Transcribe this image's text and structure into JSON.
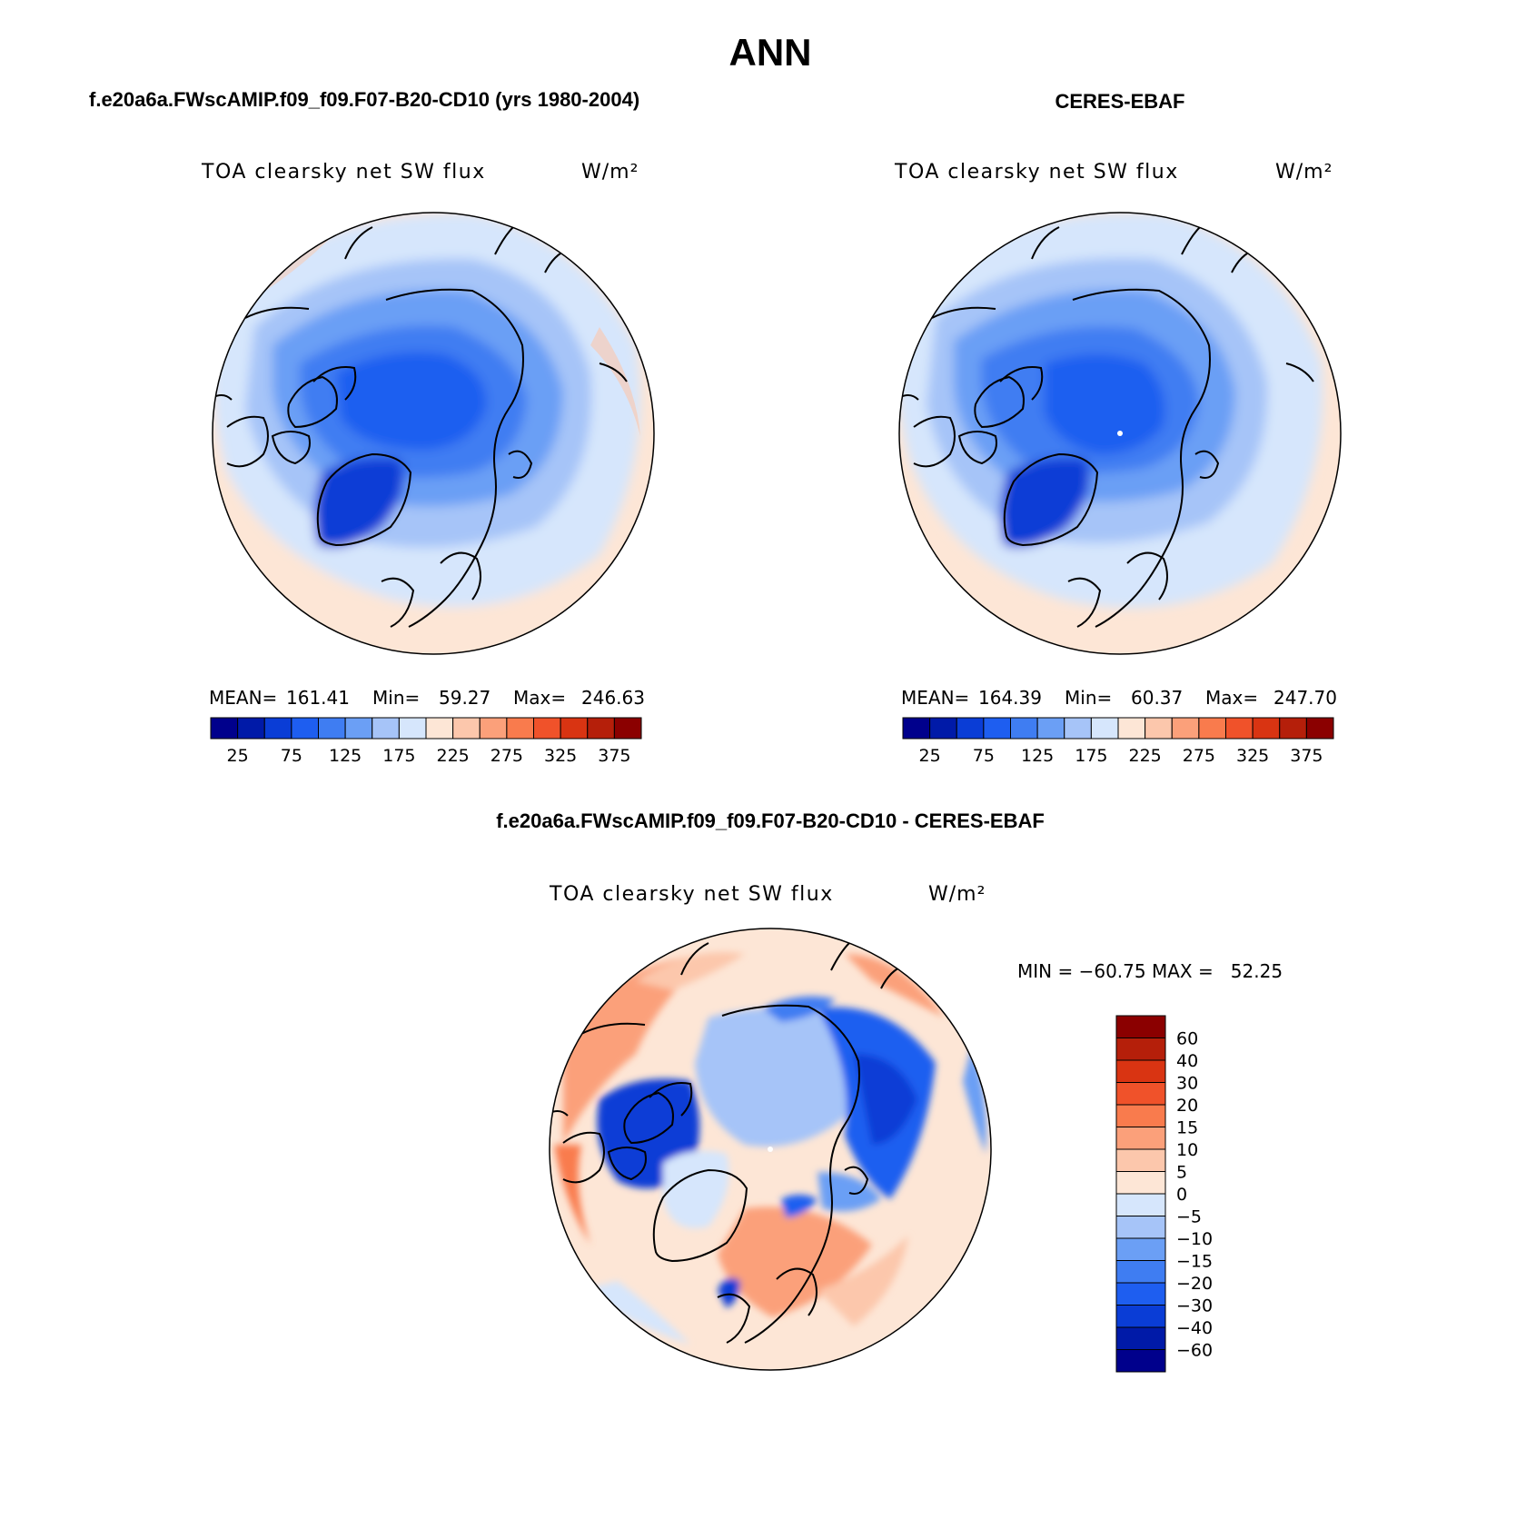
{
  "page_title": "ANN",
  "colors": {
    "cool": [
      "#00008c",
      "#001aa8",
      "#0a3dd6",
      "#1e5ef0",
      "#3f7df2",
      "#6b9ff5",
      "#a6c4f8",
      "#d6e6fc"
    ],
    "warm": [
      "#fde6d6",
      "#fcc7ac",
      "#fba07a",
      "#f97b4d",
      "#f0522a",
      "#d93412",
      "#b51f0a",
      "#8b0000"
    ],
    "coastline": "#000000"
  },
  "panels": [
    {
      "id": "model",
      "case_title": "f.e20a6a.FWscAMIP.f09_f09.F07-B20-CD10 (yrs 1980-2004)",
      "variable": "TOA clearsky net SW flux",
      "units": "W/m²",
      "stats": {
        "mean_label": "MEAN=",
        "mean": "161.41",
        "min_label": "Min=",
        "min": "59.27",
        "max_label": "Max=",
        "max": "246.63"
      },
      "colorbar_ticks": [
        "25",
        "75",
        "125",
        "175",
        "225",
        "275",
        "325",
        "375"
      ]
    },
    {
      "id": "obs",
      "case_title": "CERES-EBAF",
      "variable": "TOA clearsky net SW flux",
      "units": "W/m²",
      "stats": {
        "mean_label": "MEAN=",
        "mean": "164.39",
        "min_label": "Min=",
        "min": "60.37",
        "max_label": "Max=",
        "max": "247.70"
      },
      "colorbar_ticks": [
        "25",
        "75",
        "125",
        "175",
        "225",
        "275",
        "325",
        "375"
      ]
    }
  ],
  "diff": {
    "case_title": "f.e20a6a.FWscAMIP.f09_f09.F07-B20-CD10 - CERES-EBAF",
    "variable": "TOA clearsky net SW flux",
    "units": "W/m²",
    "minmax_text": "MIN = −60.75 MAX =   52.25",
    "colorbar_ticks": [
      "60",
      "40",
      "30",
      "20",
      "15",
      "10",
      "5",
      "0",
      "−5",
      "−10",
      "−15",
      "−20",
      "−30",
      "−40",
      "−60"
    ]
  }
}
